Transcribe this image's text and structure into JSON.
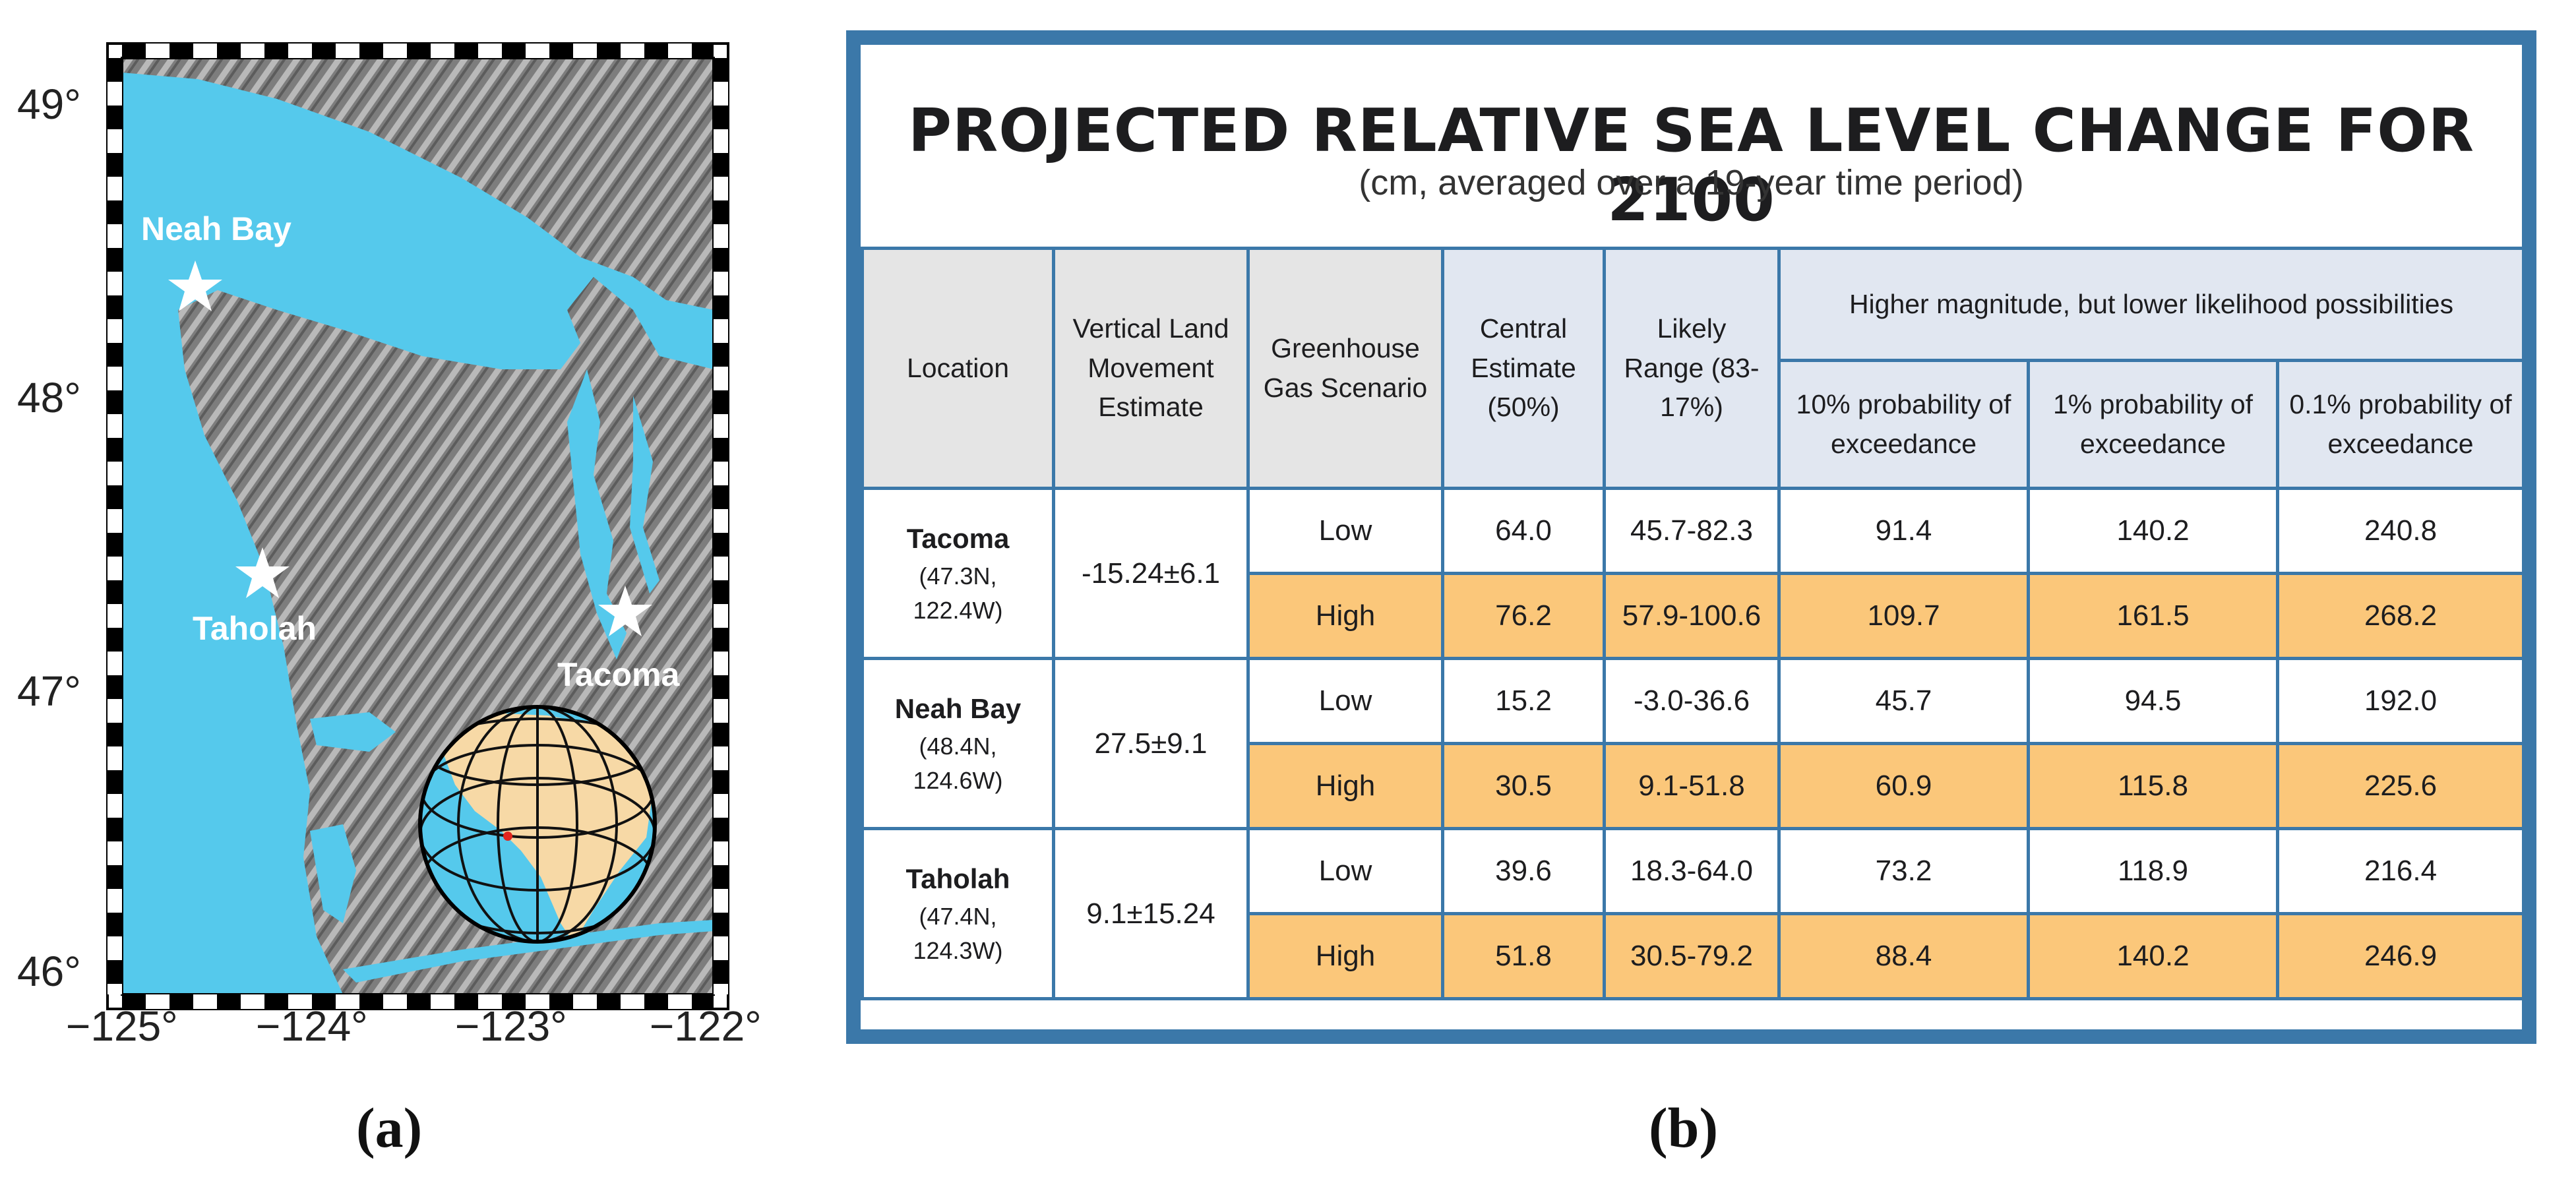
{
  "map": {
    "lat_labels": [
      "49°",
      "48°",
      "47°",
      "46°"
    ],
    "lon_labels": [
      "−125°",
      "−124°",
      "−123°",
      "−122°"
    ],
    "places": [
      {
        "name": "Neah Bay"
      },
      {
        "name": "Taholah"
      },
      {
        "name": "Tacoma"
      }
    ],
    "colors": {
      "water": "#55c9ec",
      "land": "#8a8a8a",
      "globe_land": "#f7d9a6",
      "marker": "#e0261e"
    }
  },
  "panel_labels": {
    "a": "(a)",
    "b": "(b)"
  },
  "table": {
    "title": "PROJECTED RELATIVE SEA LEVEL CHANGE FOR 2100",
    "subtitle": "(cm, averaged over a 19-year time period)",
    "headers": {
      "location": "Location",
      "vlm": "Vertical Land Movement Estimate",
      "ghg": "Greenhouse Gas Scenario",
      "central": "Central Estimate (50%)",
      "likely": "Likely Range (83-17%)",
      "higher": "Higher magnitude, but lower likelihood possibilities",
      "p10": "10% probability of exceedance",
      "p1": "1% probability of exceedance",
      "p01": "0.1% probability of exceedance"
    },
    "locations": [
      {
        "name": "Tacoma",
        "coord1": "(47.3N,",
        "coord2": "122.4W)",
        "vlm": "-15.24±6.1",
        "rows": [
          {
            "scenario": "Low",
            "central": "64.0",
            "likely": "45.7-82.3",
            "p10": "91.4",
            "p1": "140.2",
            "p01": "240.8"
          },
          {
            "scenario": "High",
            "central": "76.2",
            "likely": "57.9-100.6",
            "p10": "109.7",
            "p1": "161.5",
            "p01": "268.2"
          }
        ]
      },
      {
        "name": "Neah Bay",
        "coord1": "(48.4N,",
        "coord2": "124.6W)",
        "vlm": "27.5±9.1",
        "rows": [
          {
            "scenario": "Low",
            "central": "15.2",
            "likely": "-3.0-36.6",
            "p10": "45.7",
            "p1": "94.5",
            "p01": "192.0"
          },
          {
            "scenario": "High",
            "central": "30.5",
            "likely": "9.1-51.8",
            "p10": "60.9",
            "p1": "115.8",
            "p01": "225.6"
          }
        ]
      },
      {
        "name": "Taholah",
        "coord1": "(47.4N,",
        "coord2": "124.3W)",
        "vlm": "9.1±15.24",
        "rows": [
          {
            "scenario": "Low",
            "central": "39.6",
            "likely": "18.3-64.0",
            "p10": "73.2",
            "p1": "118.9",
            "p01": "216.4"
          },
          {
            "scenario": "High",
            "central": "51.8",
            "likely": "30.5-79.2",
            "p10": "88.4",
            "p1": "140.2",
            "p01": "246.9"
          }
        ]
      }
    ],
    "colors": {
      "border": "#3b78a9",
      "header_bg": "#e1e7f1",
      "high_bg": "#fbc77a"
    }
  }
}
